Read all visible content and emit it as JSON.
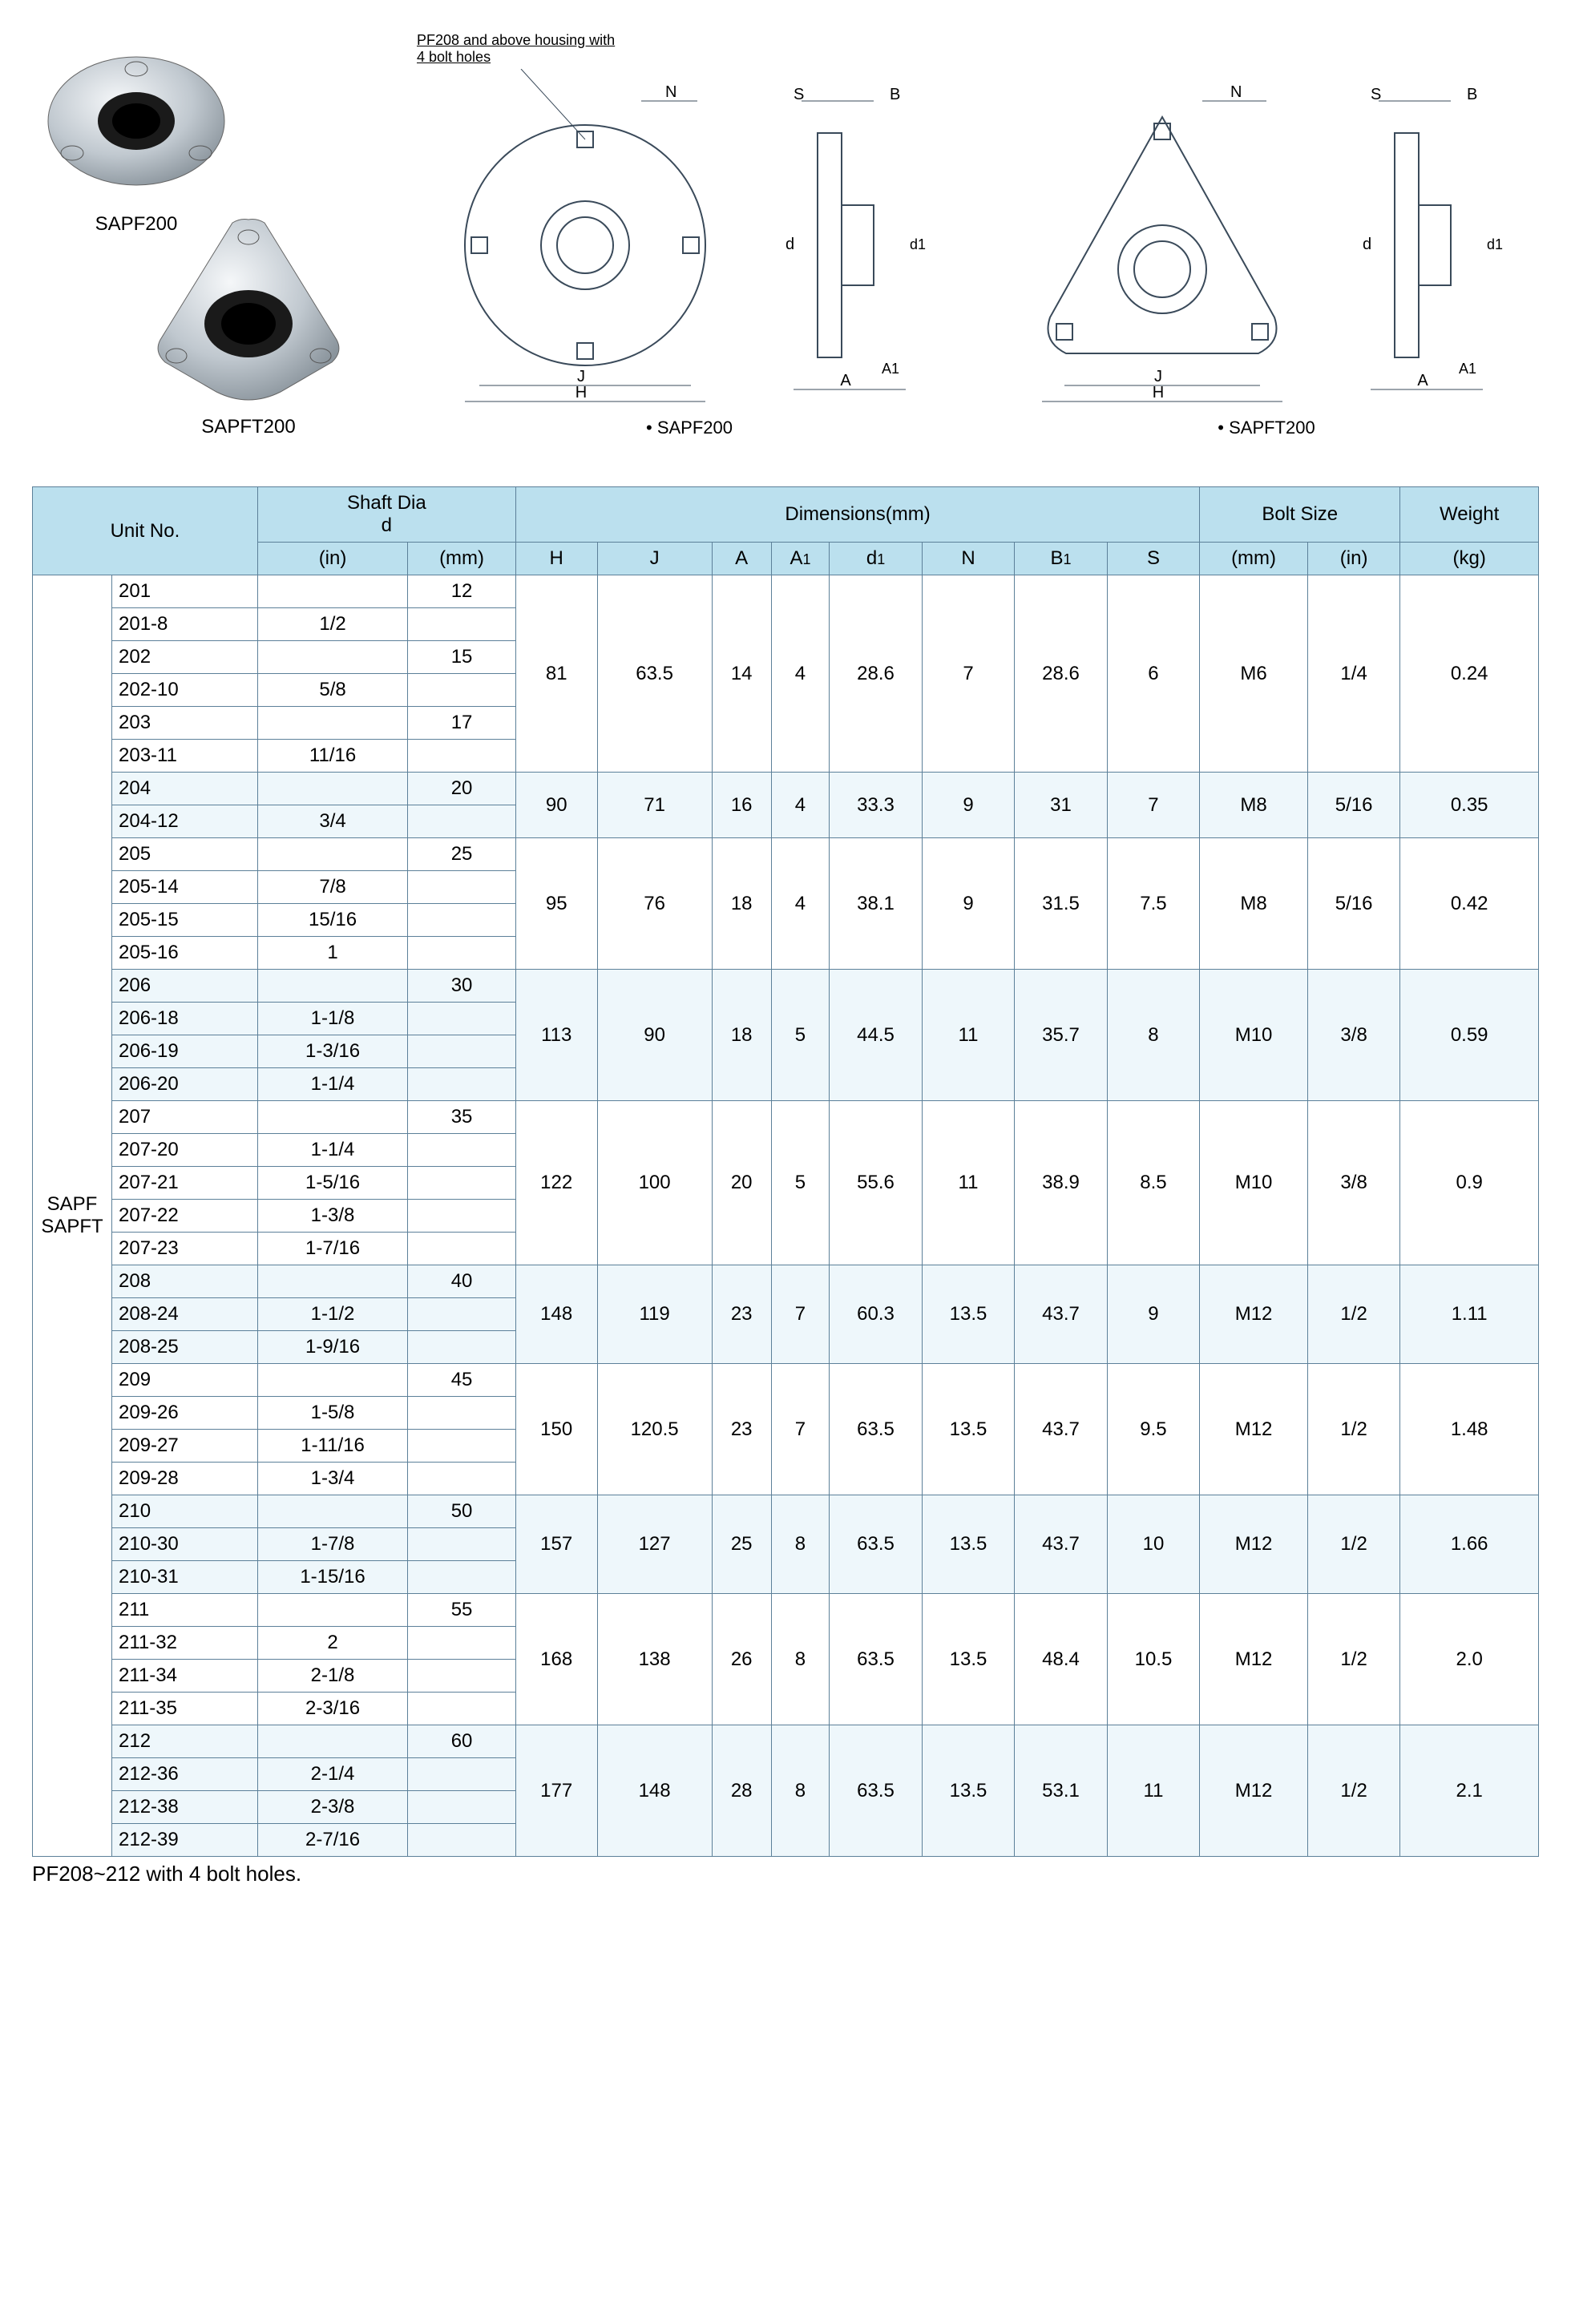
{
  "photos": {
    "label1": "SAPF200",
    "label2": "SAPFT200"
  },
  "drawings": {
    "note": "PF208 and above housing with 4 bolt holes",
    "label1": "• SAPF200",
    "label2": "• SAPFT200",
    "dims": {
      "H": "H",
      "J": "J",
      "A": "A",
      "A1": "A1",
      "N": "N",
      "S": "S",
      "B": "B",
      "d": "d",
      "d1": "d1"
    }
  },
  "headers": {
    "unit_no": "Unit No.",
    "shaft_dia": "Shaft Dia",
    "shaft_d": "d",
    "in": "(in)",
    "mm": "(mm)",
    "dimensions": "Dimensions(mm)",
    "H": "H",
    "J": "J",
    "A": "A",
    "A1": "A1",
    "d1": "d1",
    "N": "N",
    "B1": "B1",
    "S": "S",
    "bolt_size": "Bolt Size",
    "weight": "Weight",
    "kg": "(kg)"
  },
  "prefix": "SAPF\nSAPFT",
  "groups": [
    {
      "alt": false,
      "units": [
        {
          "u": "201",
          "in": ""
        },
        {
          "u": "201-8",
          "in": "1/2"
        },
        {
          "u": "202",
          "in": ""
        },
        {
          "u": "202-10",
          "in": "5/8"
        },
        {
          "u": "203",
          "in": ""
        },
        {
          "u": "203-11",
          "in": "11/16"
        }
      ],
      "mm_rows": [
        "12",
        "",
        "15",
        "",
        "17",
        ""
      ],
      "H": "81",
      "J": "63.5",
      "A": "14",
      "A1": "4",
      "d1": "28.6",
      "N": "7",
      "B1": "28.6",
      "S": "6",
      "bolt_mm": "M6",
      "bolt_in": "1/4",
      "weight": "0.24"
    },
    {
      "alt": true,
      "units": [
        {
          "u": "204",
          "in": ""
        },
        {
          "u": "204-12",
          "in": "3/4"
        }
      ],
      "mm_rows": [
        "20",
        ""
      ],
      "H": "90",
      "J": "71",
      "A": "16",
      "A1": "4",
      "d1": "33.3",
      "N": "9",
      "B1": "31",
      "S": "7",
      "bolt_mm": "M8",
      "bolt_in": "5/16",
      "weight": "0.35"
    },
    {
      "alt": false,
      "units": [
        {
          "u": "205",
          "in": ""
        },
        {
          "u": "205-14",
          "in": "7/8"
        },
        {
          "u": "205-15",
          "in": "15/16"
        },
        {
          "u": "205-16",
          "in": "1"
        }
      ],
      "mm_rows": [
        "25",
        "",
        "",
        ""
      ],
      "H": "95",
      "J": "76",
      "A": "18",
      "A1": "4",
      "d1": "38.1",
      "N": "9",
      "B1": "31.5",
      "S": "7.5",
      "bolt_mm": "M8",
      "bolt_in": "5/16",
      "weight": "0.42"
    },
    {
      "alt": true,
      "units": [
        {
          "u": "206",
          "in": ""
        },
        {
          "u": "206-18",
          "in": "1-1/8"
        },
        {
          "u": "206-19",
          "in": "1-3/16"
        },
        {
          "u": "206-20",
          "in": "1-1/4"
        }
      ],
      "mm_rows": [
        "30",
        "",
        "",
        ""
      ],
      "H": "113",
      "J": "90",
      "A": "18",
      "A1": "5",
      "d1": "44.5",
      "N": "11",
      "B1": "35.7",
      "S": "8",
      "bolt_mm": "M10",
      "bolt_in": "3/8",
      "weight": "0.59"
    },
    {
      "alt": false,
      "units": [
        {
          "u": "207",
          "in": ""
        },
        {
          "u": "207-20",
          "in": "1-1/4"
        },
        {
          "u": "207-21",
          "in": "1-5/16"
        },
        {
          "u": "207-22",
          "in": "1-3/8"
        },
        {
          "u": "207-23",
          "in": "1-7/16"
        }
      ],
      "mm_rows": [
        "35",
        "",
        "",
        "",
        ""
      ],
      "H": "122",
      "J": "100",
      "A": "20",
      "A1": "5",
      "d1": "55.6",
      "N": "11",
      "B1": "38.9",
      "S": "8.5",
      "bolt_mm": "M10",
      "bolt_in": "3/8",
      "weight": "0.9"
    },
    {
      "alt": true,
      "units": [
        {
          "u": "208",
          "in": ""
        },
        {
          "u": "208-24",
          "in": "1-1/2"
        },
        {
          "u": "208-25",
          "in": "1-9/16"
        }
      ],
      "mm_rows": [
        "40",
        "",
        ""
      ],
      "H": "148",
      "J": "119",
      "A": "23",
      "A1": "7",
      "d1": "60.3",
      "N": "13.5",
      "B1": "43.7",
      "S": "9",
      "bolt_mm": "M12",
      "bolt_in": "1/2",
      "weight": "1.11"
    },
    {
      "alt": false,
      "units": [
        {
          "u": "209",
          "in": ""
        },
        {
          "u": "209-26",
          "in": "1-5/8"
        },
        {
          "u": "209-27",
          "in": "1-11/16"
        },
        {
          "u": "209-28",
          "in": "1-3/4"
        }
      ],
      "mm_rows": [
        "45",
        "",
        "",
        ""
      ],
      "H": "150",
      "J": "120.5",
      "A": "23",
      "A1": "7",
      "d1": "63.5",
      "N": "13.5",
      "B1": "43.7",
      "S": "9.5",
      "bolt_mm": "M12",
      "bolt_in": "1/2",
      "weight": "1.48"
    },
    {
      "alt": true,
      "units": [
        {
          "u": "210",
          "in": ""
        },
        {
          "u": "210-30",
          "in": "1-7/8"
        },
        {
          "u": "210-31",
          "in": "1-15/16"
        }
      ],
      "mm_rows": [
        "50",
        "",
        ""
      ],
      "H": "157",
      "J": "127",
      "A": "25",
      "A1": "8",
      "d1": "63.5",
      "N": "13.5",
      "B1": "43.7",
      "S": "10",
      "bolt_mm": "M12",
      "bolt_in": "1/2",
      "weight": "1.66"
    },
    {
      "alt": false,
      "units": [
        {
          "u": "211",
          "in": ""
        },
        {
          "u": "211-32",
          "in": "2"
        },
        {
          "u": "211-34",
          "in": "2-1/8"
        },
        {
          "u": "211-35",
          "in": "2-3/16"
        }
      ],
      "mm_rows": [
        "55",
        "",
        "",
        ""
      ],
      "H": "168",
      "J": "138",
      "A": "26",
      "A1": "8",
      "d1": "63.5",
      "N": "13.5",
      "B1": "48.4",
      "S": "10.5",
      "bolt_mm": "M12",
      "bolt_in": "1/2",
      "weight": "2.0"
    },
    {
      "alt": true,
      "units": [
        {
          "u": "212",
          "in": ""
        },
        {
          "u": "212-36",
          "in": "2-1/4"
        },
        {
          "u": "212-38",
          "in": "2-3/8"
        },
        {
          "u": "212-39",
          "in": "2-7/16"
        }
      ],
      "mm_rows": [
        "60",
        "",
        "",
        ""
      ],
      "H": "177",
      "J": "148",
      "A": "28",
      "A1": "8",
      "d1": "63.5",
      "N": "13.5",
      "B1": "53.1",
      "S": "11",
      "bolt_mm": "M12",
      "bolt_in": "1/2",
      "weight": "2.1"
    }
  ],
  "footnote": "PF208~212 with 4 bolt holes.",
  "style": {
    "header_bg": "#bbe0ee",
    "alt_bg": "#eef7fb",
    "border_color": "#5c8099",
    "drawing_stroke": "#3a4a5a",
    "font_size_table": 24,
    "font_size_footnote": 26
  }
}
